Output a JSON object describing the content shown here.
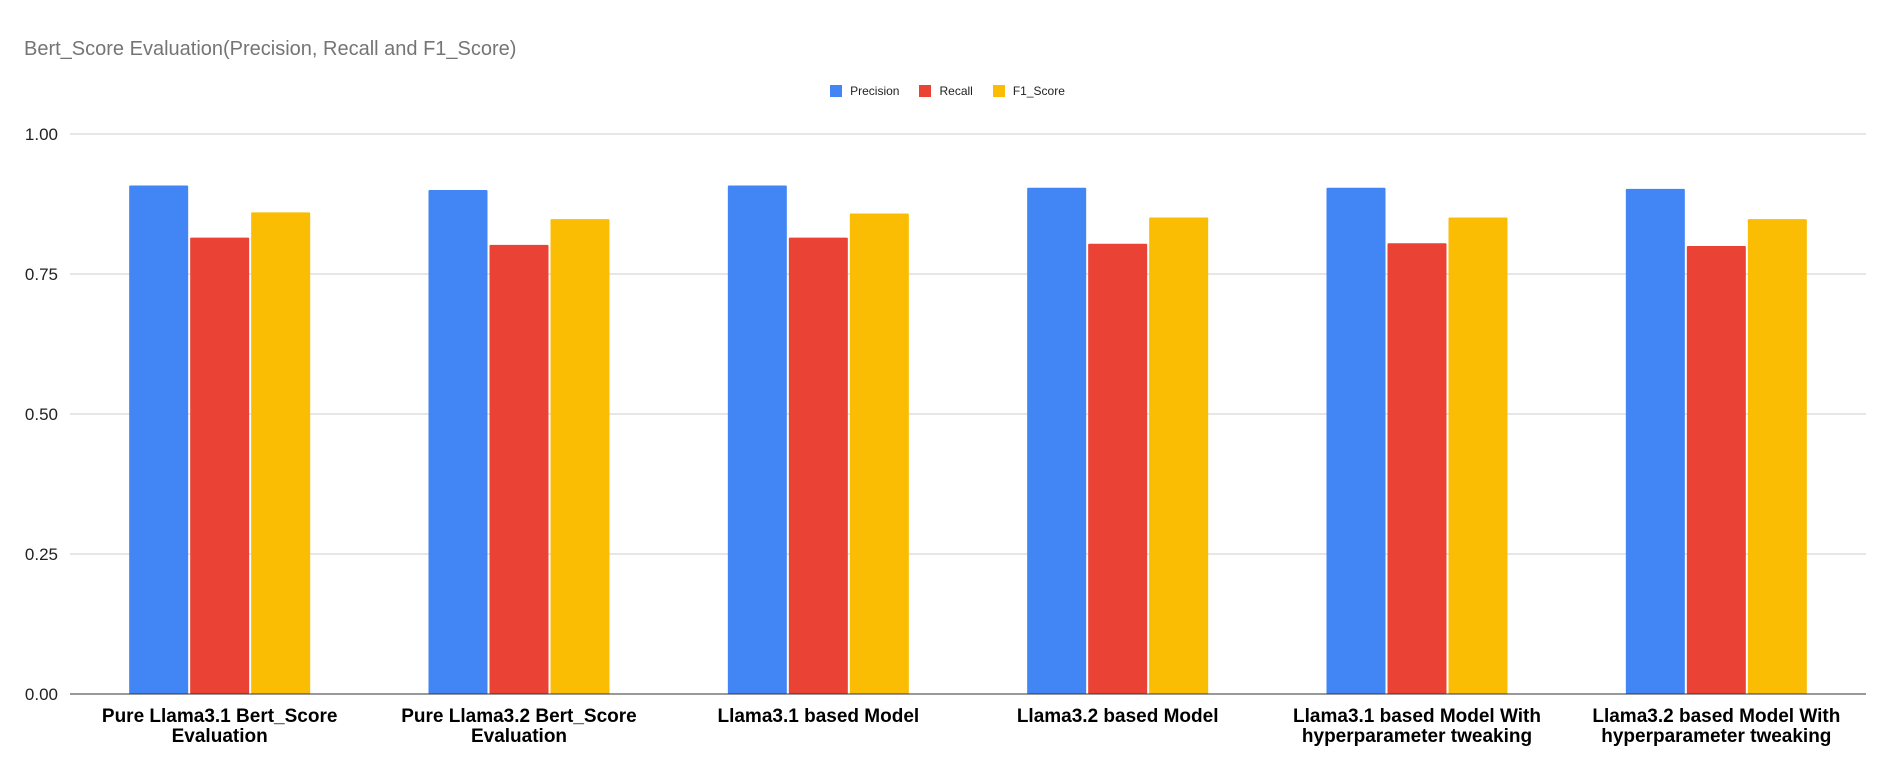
{
  "chart_data": {
    "type": "bar",
    "title": "Bert_Score Evaluation(Precision, Recall and F1_Score)",
    "categories": [
      [
        "Pure Llama3.1 Bert_Score",
        "Evaluation"
      ],
      [
        "Pure Llama3.2 Bert_Score",
        "Evaluation"
      ],
      [
        "Llama3.1 based Model"
      ],
      [
        "Llama3.2 based Model"
      ],
      [
        "Llama3.1 based Model With",
        "hyperparameter tweaking"
      ],
      [
        "Llama3.2 based Model With",
        "hyperparameter tweaking"
      ]
    ],
    "series": [
      {
        "name": "Precision",
        "color": "#4285F4",
        "values": [
          0.908,
          0.9,
          0.908,
          0.904,
          0.904,
          0.902
        ]
      },
      {
        "name": "Recall",
        "color": "#EA4335",
        "values": [
          0.815,
          0.802,
          0.815,
          0.804,
          0.805,
          0.8
        ]
      },
      {
        "name": "F1_Score",
        "color": "#FBBC04",
        "values": [
          0.86,
          0.848,
          0.858,
          0.851,
          0.851,
          0.848
        ]
      }
    ],
    "ylim": [
      0,
      1
    ],
    "yticks": [
      "0.00",
      "0.25",
      "0.50",
      "0.75",
      "1.00"
    ],
    "grid": true,
    "legend_position": "top-center"
  }
}
